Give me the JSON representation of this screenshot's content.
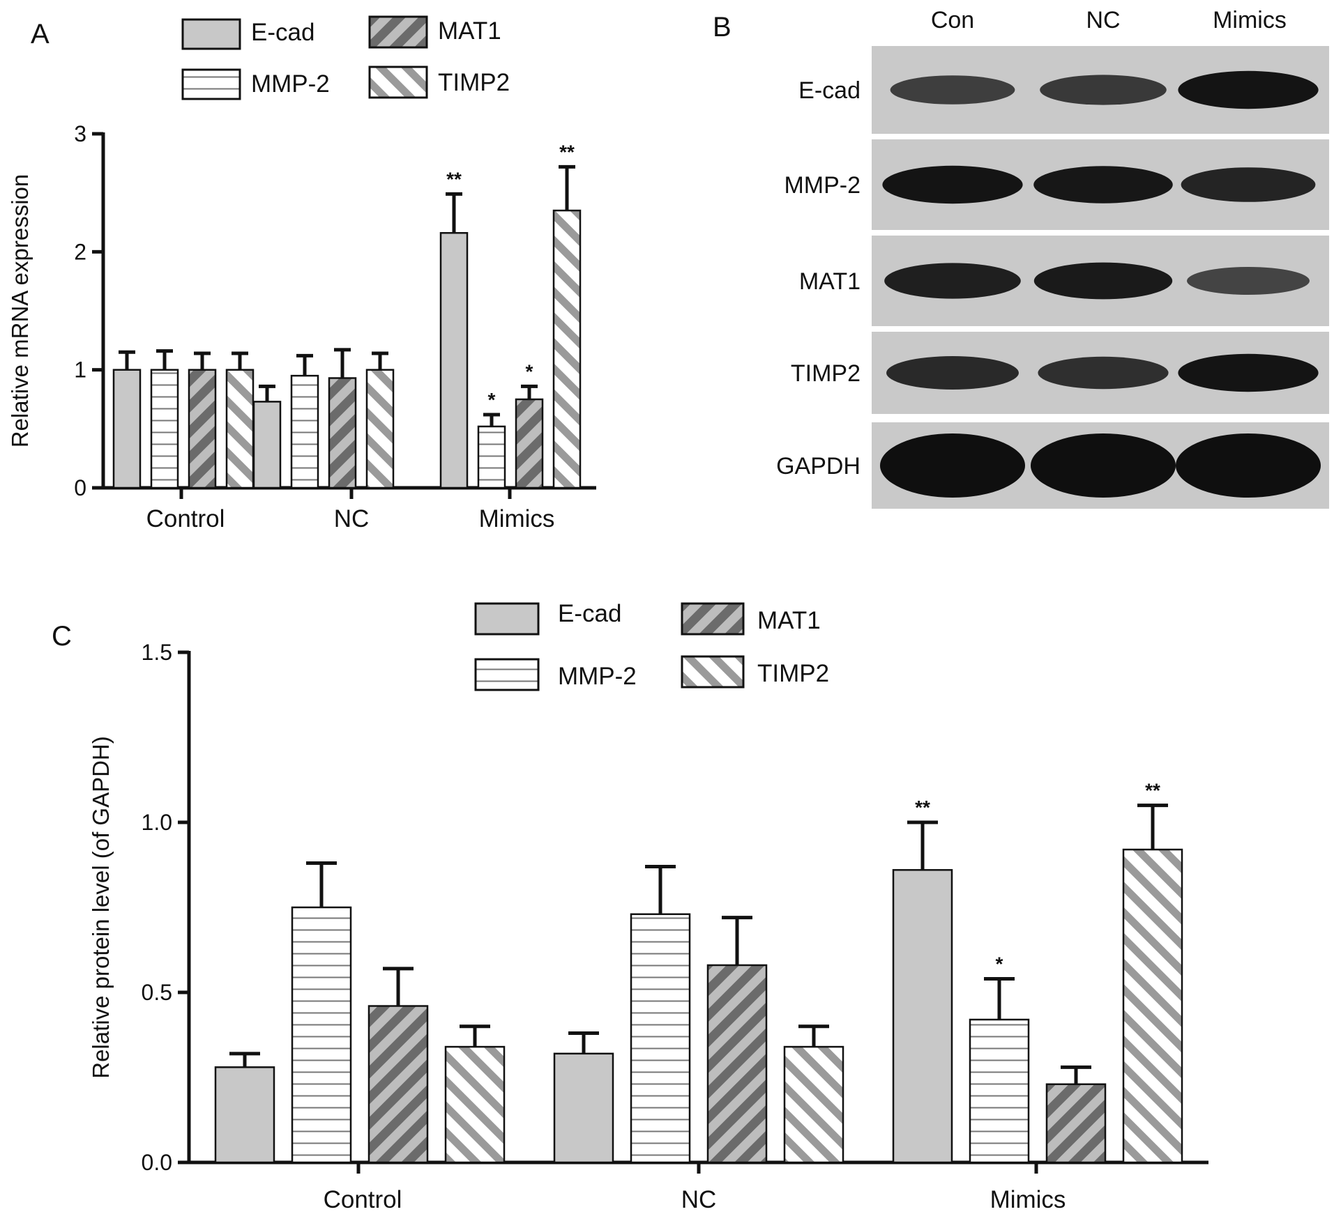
{
  "panels": {
    "a": {
      "letter": "A"
    },
    "b": {
      "letter": "B"
    },
    "c": {
      "letter": "C"
    }
  },
  "legend_items": [
    {
      "key": "ecad",
      "label": "E-cad",
      "pattern": "solid"
    },
    {
      "key": "mmp2",
      "label": "MMP-2",
      "pattern": "horizontal"
    },
    {
      "key": "mat1",
      "label": "MAT1",
      "pattern": "back-diagonal"
    },
    {
      "key": "timp2",
      "label": "TIMP2",
      "pattern": "forward-diagonal"
    }
  ],
  "colors": {
    "bar_gray": "#c8c8c8",
    "stripe_dark": "#6b6b6b",
    "stripe_light": "#9a9a9a",
    "ink": "#111111",
    "blot_background": "#c9c9c9"
  },
  "blot": {
    "columns": [
      "Con",
      "NC",
      "Mimics"
    ],
    "rows": [
      {
        "label": "E-cad",
        "intensity": [
          0.55,
          0.6,
          0.95
        ]
      },
      {
        "label": "MMP-2",
        "intensity": [
          0.95,
          0.92,
          0.8
        ]
      },
      {
        "label": "MAT1",
        "intensity": [
          0.85,
          0.9,
          0.5
        ]
      },
      {
        "label": "TIMP2",
        "intensity": [
          0.75,
          0.7,
          0.95
        ]
      },
      {
        "label": "GAPDH",
        "intensity": [
          1.0,
          1.0,
          1.0
        ]
      }
    ]
  },
  "chart_data": [
    {
      "panel": "A",
      "type": "bar",
      "ylabel": "Relative mRNA expression",
      "xlabel": "",
      "ylim": [
        0,
        3
      ],
      "yticks": [
        "0",
        "1",
        "2",
        "3"
      ],
      "categories": [
        "Control",
        "NC",
        "Mimics"
      ],
      "legend_placement": "top",
      "series": [
        {
          "name": "E-cad",
          "values": [
            1.0,
            0.73,
            2.16
          ],
          "errors": [
            0.15,
            0.13,
            0.33
          ],
          "significance": [
            "",
            "",
            "**"
          ]
        },
        {
          "name": "MMP-2",
          "values": [
            1.0,
            0.95,
            0.52
          ],
          "errors": [
            0.16,
            0.17,
            0.1
          ],
          "significance": [
            "",
            "",
            "*"
          ]
        },
        {
          "name": "MAT1",
          "values": [
            1.0,
            0.93,
            0.75
          ],
          "errors": [
            0.14,
            0.24,
            0.11
          ],
          "significance": [
            "",
            "",
            "*"
          ]
        },
        {
          "name": "TIMP2",
          "values": [
            1.0,
            1.0,
            2.35
          ],
          "errors": [
            0.14,
            0.14,
            0.37
          ],
          "significance": [
            "",
            "",
            "**"
          ]
        }
      ]
    },
    {
      "panel": "C",
      "type": "bar",
      "ylabel": "Relative protein level (of GAPDH)",
      "xlabel": "",
      "ylim": [
        0,
        1.5
      ],
      "yticks": [
        "0.0",
        "0.5",
        "1.0",
        "1.5"
      ],
      "categories": [
        "Control",
        "NC",
        "Mimics"
      ],
      "legend_placement": "top",
      "series": [
        {
          "name": "E-cad",
          "values": [
            0.28,
            0.32,
            0.86
          ],
          "errors": [
            0.04,
            0.06,
            0.14
          ],
          "significance": [
            "",
            "",
            "**"
          ]
        },
        {
          "name": "MMP-2",
          "values": [
            0.75,
            0.73,
            0.42
          ],
          "errors": [
            0.13,
            0.14,
            0.12
          ],
          "significance": [
            "",
            "",
            "*"
          ]
        },
        {
          "name": "MAT1",
          "values": [
            0.46,
            0.58,
            0.23
          ],
          "errors": [
            0.11,
            0.14,
            0.05
          ],
          "significance": [
            "",
            "",
            ""
          ]
        },
        {
          "name": "TIMP2",
          "values": [
            0.34,
            0.34,
            0.92
          ],
          "errors": [
            0.06,
            0.06,
            0.13
          ],
          "significance": [
            "",
            "",
            "**"
          ]
        }
      ]
    }
  ]
}
